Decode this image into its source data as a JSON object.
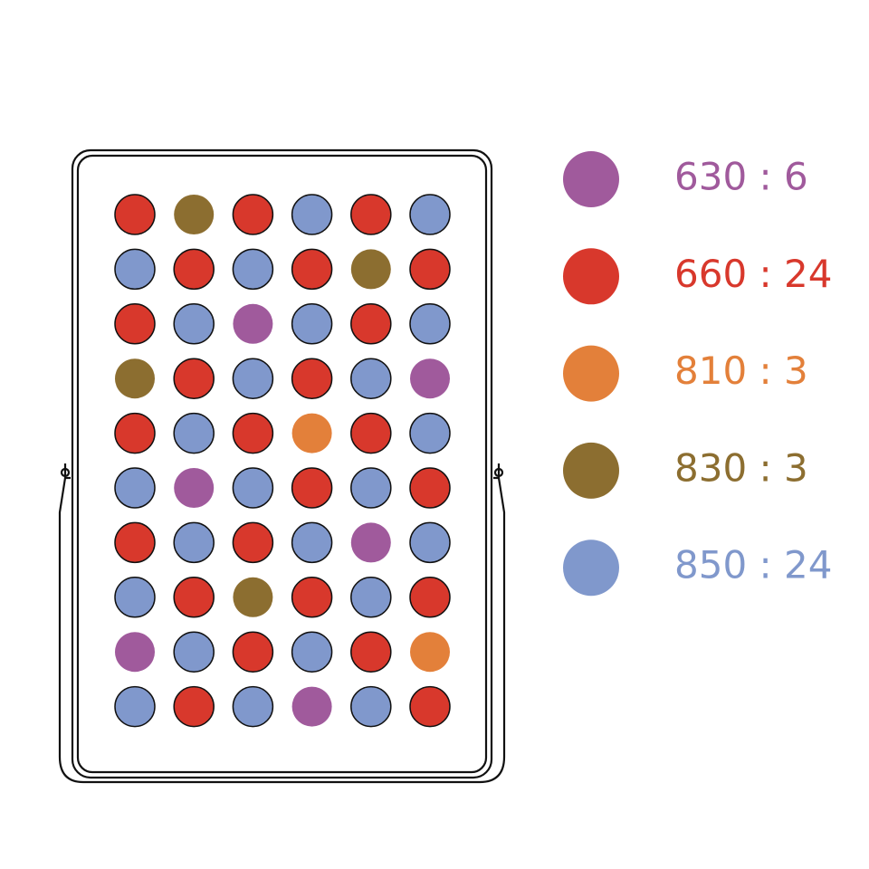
{
  "legend": {
    "items": [
      {
        "label": "630 : 6",
        "color": "#a05a9c"
      },
      {
        "label": "660 : 24",
        "color": "#d8382c"
      },
      {
        "label": "810 : 3",
        "color": "#e3803a"
      },
      {
        "label": "830 : 3",
        "color": "#8c6e30"
      },
      {
        "label": "850 : 24",
        "color": "#8098cc"
      }
    ]
  }
}
